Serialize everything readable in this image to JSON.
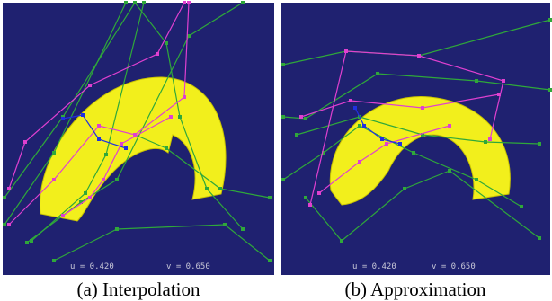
{
  "panels": [
    {
      "caption": "(a) Interpolation",
      "u_label": "u = 0.420",
      "v_label": "v = 0.650"
    },
    {
      "caption": "(b) Approximation",
      "u_label": "u = 0.420",
      "v_label": "v = 0.650"
    }
  ]
}
